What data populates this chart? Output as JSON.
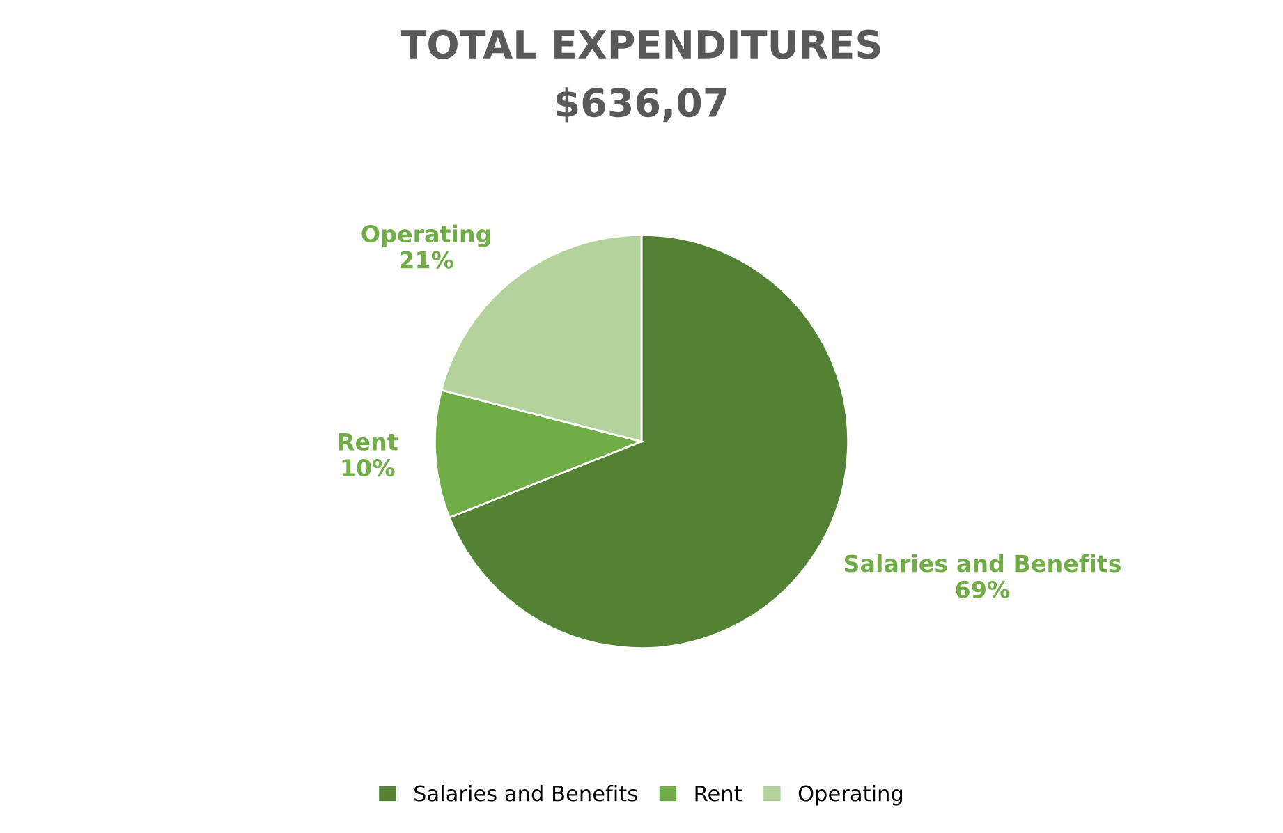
{
  "chart_data": {
    "type": "pie",
    "title": "TOTAL EXPENDITURES",
    "subtitle": "$636,07",
    "categories": [
      "Salaries and Benefits",
      "Rent",
      "Operating"
    ],
    "values": [
      69,
      10,
      21
    ],
    "value_labels": [
      "69%",
      "10%",
      "21%"
    ],
    "colors": [
      "#548235",
      "#70ad47",
      "#b4d39c"
    ],
    "legend": "bottom"
  }
}
